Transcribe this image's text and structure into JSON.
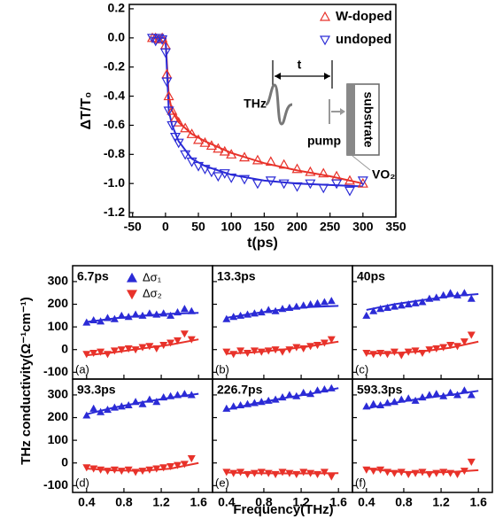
{
  "chart_data": [
    {
      "type": "scatter",
      "ylabel": "ΔT/T₀",
      "xlabel": "t(ps)",
      "xlim": [
        -55,
        350
      ],
      "xticks": [
        -50,
        0,
        50,
        100,
        150,
        200,
        250,
        300,
        350
      ],
      "ylim": [
        -1.23,
        0.23
      ],
      "yticks": [
        0.2,
        {
          "value": 0,
          "label": "0.0"
        },
        -0.2,
        -0.4,
        -0.6,
        -0.8,
        {
          "value": -1,
          "label": "-1.0"
        },
        -1.2
      ],
      "legend": "upper right",
      "x": [
        -20,
        -15,
        -10,
        -5,
        0,
        2,
        5,
        10,
        15,
        20,
        30,
        40,
        50,
        60,
        70,
        80,
        90,
        100,
        120,
        140,
        160,
        180,
        200,
        220,
        240,
        260,
        280,
        300
      ],
      "series": [
        {
          "name": "W-doped",
          "color": "#e8322a",
          "marker": "triangle-up-open",
          "values": [
            0,
            0,
            -0.01,
            0,
            -0.05,
            -0.25,
            -0.4,
            -0.5,
            -0.55,
            -0.58,
            -0.62,
            -0.66,
            -0.7,
            -0.72,
            -0.74,
            -0.76,
            -0.78,
            -0.8,
            -0.82,
            -0.84,
            -0.85,
            -0.87,
            -0.9,
            -0.92,
            -0.93,
            -0.95,
            -0.98,
            -1.0
          ]
        },
        {
          "name": "undoped",
          "color": "#2b2bd6",
          "marker": "triangle-down-open",
          "values": [
            0,
            -0.02,
            0,
            -0.01,
            -0.1,
            -0.3,
            -0.5,
            -0.6,
            -0.68,
            -0.72,
            -0.8,
            -0.85,
            -0.88,
            -0.9,
            -0.92,
            -0.95,
            -0.93,
            -0.96,
            -0.97,
            -1.0,
            -0.98,
            -1.0,
            -1.02,
            -1.0,
            -1.03,
            -1.0,
            -1.05,
            -0.98
          ]
        }
      ],
      "fits": {
        "x": [
          -20,
          0,
          5,
          10,
          20,
          40,
          60,
          100,
          150,
          200,
          250,
          300
        ],
        "series": [
          {
            "color": "#e8322a",
            "values": [
              0,
              0,
              -0.4,
              -0.5,
              -0.58,
              -0.66,
              -0.71,
              -0.79,
              -0.86,
              -0.91,
              -0.95,
              -1.0
            ]
          },
          {
            "color": "#2b2bd6",
            "values": [
              0,
              0,
              -0.5,
              -0.6,
              -0.71,
              -0.83,
              -0.88,
              -0.94,
              -0.98,
              -1.0,
              -1.01,
              -1.02
            ]
          }
        ]
      },
      "inset": {
        "delay": "t",
        "probe": "THz",
        "pump": "pump",
        "substrate": "substrate",
        "film": "VO₂"
      }
    },
    {
      "type": "scatter",
      "label": "6.7ps",
      "panel": "(a)",
      "legend": "upper center",
      "xlim": [
        0.25,
        1.75
      ],
      "xticks": [
        0.4,
        0.8,
        1.2,
        1.6
      ],
      "ylim": [
        -130,
        370
      ],
      "yticks": [
        -100,
        0,
        100,
        200,
        300
      ],
      "x": [
        0.4,
        0.475,
        0.55,
        0.625,
        0.7,
        0.775,
        0.85,
        0.925,
        1.0,
        1.075,
        1.15,
        1.225,
        1.3,
        1.375,
        1.45,
        1.525
      ],
      "series": [
        {
          "name": "Δσ₁",
          "color": "#2b2bd6",
          "marker": "triangle-up",
          "values": [
            120,
            130,
            125,
            140,
            135,
            150,
            145,
            155,
            150,
            160,
            155,
            160,
            150,
            165,
            180,
            170
          ]
        },
        {
          "name": "Δσ₂",
          "color": "#e8322a",
          "marker": "triangle-down",
          "values": [
            -20,
            -15,
            -10,
            -20,
            -5,
            0,
            5,
            0,
            10,
            15,
            5,
            20,
            30,
            40,
            70,
            45
          ]
        }
      ],
      "fits": {
        "x": [
          0.4,
          0.7,
          1.0,
          1.3,
          1.6
        ],
        "series": [
          {
            "color": "#2b2bd6",
            "values": [
              122,
              138,
              150,
              158,
              162
            ]
          },
          {
            "color": "#e8322a",
            "values": [
              -25,
              -12,
              5,
              22,
              45
            ]
          }
        ]
      }
    },
    {
      "type": "scatter",
      "label": "13.3ps",
      "panel": "(b)",
      "xlim": [
        0.25,
        1.75
      ],
      "xticks": [
        0.4,
        0.8,
        1.2,
        1.6
      ],
      "ylim": [
        -130,
        370
      ],
      "yticks": [
        -100,
        0,
        100,
        200,
        300
      ],
      "x": [
        0.4,
        0.475,
        0.55,
        0.625,
        0.7,
        0.775,
        0.85,
        0.925,
        1.0,
        1.075,
        1.15,
        1.225,
        1.3,
        1.375,
        1.45,
        1.525
      ],
      "series": [
        {
          "color": "#2b2bd6",
          "marker": "triangle-up",
          "values": [
            135,
            145,
            150,
            155,
            160,
            165,
            175,
            170,
            180,
            185,
            190,
            195,
            200,
            205,
            210,
            215
          ]
        },
        {
          "color": "#e8322a",
          "marker": "triangle-down",
          "values": [
            -10,
            -20,
            -5,
            -15,
            -5,
            -10,
            -5,
            0,
            -10,
            0,
            10,
            5,
            15,
            20,
            30,
            45
          ]
        }
      ],
      "fits": {
        "x": [
          0.4,
          0.7,
          1.0,
          1.3,
          1.6
        ],
        "series": [
          {
            "color": "#2b2bd6",
            "values": [
              140,
              160,
              177,
              188,
              193
            ]
          },
          {
            "color": "#e8322a",
            "values": [
              -18,
              -12,
              0,
              15,
              35
            ]
          }
        ]
      }
    },
    {
      "type": "scatter",
      "label": "40ps",
      "panel": "(c)",
      "xlim": [
        0.25,
        1.75
      ],
      "xticks": [
        0.4,
        0.8,
        1.2,
        1.6
      ],
      "ylim": [
        -130,
        370
      ],
      "yticks": [
        -100,
        0,
        100,
        200,
        300
      ],
      "x": [
        0.4,
        0.475,
        0.55,
        0.625,
        0.7,
        0.775,
        0.85,
        0.925,
        1.0,
        1.075,
        1.15,
        1.225,
        1.3,
        1.375,
        1.45,
        1.525
      ],
      "series": [
        {
          "color": "#2b2bd6",
          "marker": "triangle-up",
          "values": [
            150,
            170,
            180,
            185,
            190,
            195,
            200,
            205,
            210,
            225,
            230,
            240,
            250,
            240,
            250,
            225
          ]
        },
        {
          "color": "#e8322a",
          "marker": "triangle-down",
          "values": [
            -15,
            -20,
            -15,
            -20,
            -10,
            -25,
            -10,
            -5,
            -15,
            0,
            5,
            10,
            20,
            15,
            35,
            65
          ]
        }
      ],
      "fits": {
        "x": [
          0.4,
          0.7,
          1.0,
          1.3,
          1.6
        ],
        "series": [
          {
            "color": "#2b2bd6",
            "values": [
              175,
              200,
              218,
              235,
              245
            ]
          },
          {
            "color": "#e8322a",
            "values": [
              -18,
              -15,
              -8,
              8,
              35
            ]
          }
        ]
      }
    },
    {
      "type": "scatter",
      "label": "93.3ps",
      "panel": "(d)",
      "xlim": [
        0.25,
        1.75
      ],
      "xticks": [
        0.4,
        0.8,
        1.2,
        1.6
      ],
      "ylim": [
        -130,
        370
      ],
      "yticks": [
        -100,
        0,
        100,
        200,
        300
      ],
      "x": [
        0.4,
        0.475,
        0.55,
        0.625,
        0.7,
        0.775,
        0.85,
        0.925,
        1.0,
        1.075,
        1.15,
        1.225,
        1.3,
        1.375,
        1.45,
        1.525
      ],
      "series": [
        {
          "color": "#2b2bd6",
          "marker": "triangle-up",
          "values": [
            210,
            240,
            225,
            235,
            245,
            250,
            255,
            270,
            260,
            280,
            270,
            290,
            295,
            300,
            305,
            300
          ]
        },
        {
          "color": "#e8322a",
          "marker": "triangle-down",
          "values": [
            -20,
            -25,
            -30,
            -35,
            -30,
            -35,
            -30,
            -40,
            -35,
            -30,
            -25,
            -20,
            -15,
            -10,
            -5,
            20
          ]
        }
      ],
      "fits": {
        "x": [
          0.4,
          0.7,
          1.0,
          1.3,
          1.6
        ],
        "series": [
          {
            "color": "#2b2bd6",
            "values": [
              215,
              245,
              268,
              288,
              305
            ]
          },
          {
            "color": "#e8322a",
            "values": [
              -25,
              -33,
              -35,
              -25,
              0
            ]
          }
        ]
      }
    },
    {
      "type": "scatter",
      "label": "226.7ps",
      "panel": "(e)",
      "xlim": [
        0.25,
        1.75
      ],
      "xticks": [
        0.4,
        0.8,
        1.2,
        1.6
      ],
      "ylim": [
        -130,
        370
      ],
      "yticks": [
        -100,
        0,
        100,
        200,
        300
      ],
      "x": [
        0.4,
        0.475,
        0.55,
        0.625,
        0.7,
        0.775,
        0.85,
        0.925,
        1.0,
        1.075,
        1.15,
        1.225,
        1.3,
        1.375,
        1.45,
        1.525
      ],
      "series": [
        {
          "color": "#2b2bd6",
          "marker": "triangle-up",
          "values": [
            240,
            250,
            255,
            260,
            265,
            270,
            275,
            280,
            290,
            300,
            295,
            310,
            305,
            320,
            325,
            330
          ]
        },
        {
          "color": "#e8322a",
          "marker": "triangle-down",
          "values": [
            -40,
            -45,
            -40,
            -50,
            -45,
            -40,
            -45,
            -50,
            -40,
            -45,
            -50,
            -40,
            -45,
            -50,
            -40,
            -60
          ]
        }
      ],
      "fits": {
        "x": [
          0.4,
          0.7,
          1.0,
          1.3,
          1.6
        ],
        "series": [
          {
            "color": "#2b2bd6",
            "values": [
              235,
              262,
              285,
              305,
              330
            ]
          },
          {
            "color": "#e8322a",
            "values": [
              -42,
              -45,
              -46,
              -46,
              -45
            ]
          }
        ]
      }
    },
    {
      "type": "scatter",
      "label": "593.3ps",
      "panel": "(f)",
      "xlim": [
        0.25,
        1.75
      ],
      "xticks": [
        0.4,
        0.8,
        1.2,
        1.6
      ],
      "ylim": [
        -130,
        370
      ],
      "yticks": [
        -100,
        0,
        100,
        200,
        300
      ],
      "x": [
        0.4,
        0.475,
        0.55,
        0.625,
        0.7,
        0.775,
        0.85,
        0.925,
        1.0,
        1.075,
        1.15,
        1.225,
        1.3,
        1.375,
        1.45,
        1.525
      ],
      "series": [
        {
          "color": "#2b2bd6",
          "marker": "triangle-up",
          "values": [
            250,
            260,
            255,
            265,
            270,
            280,
            285,
            275,
            290,
            300,
            305,
            295,
            310,
            300,
            320,
            300
          ]
        },
        {
          "color": "#e8322a",
          "marker": "triangle-down",
          "values": [
            -30,
            -35,
            -30,
            -40,
            -45,
            -40,
            -50,
            -45,
            -40,
            -50,
            -45,
            -40,
            -45,
            -50,
            -35,
            5
          ]
        }
      ],
      "fits": {
        "x": [
          0.4,
          0.7,
          1.0,
          1.3,
          1.6
        ],
        "series": [
          {
            "color": "#2b2bd6",
            "values": [
              240,
              265,
              285,
              300,
              318
            ]
          },
          {
            "color": "#e8322a",
            "values": [
              -25,
              -38,
              -42,
              -40,
              -32
            ]
          }
        ]
      }
    }
  ],
  "shared_axes": {
    "ylabel": "THz conductivity(Ω⁻¹cm⁻¹)",
    "xlabel": "Frequency(THz)"
  }
}
